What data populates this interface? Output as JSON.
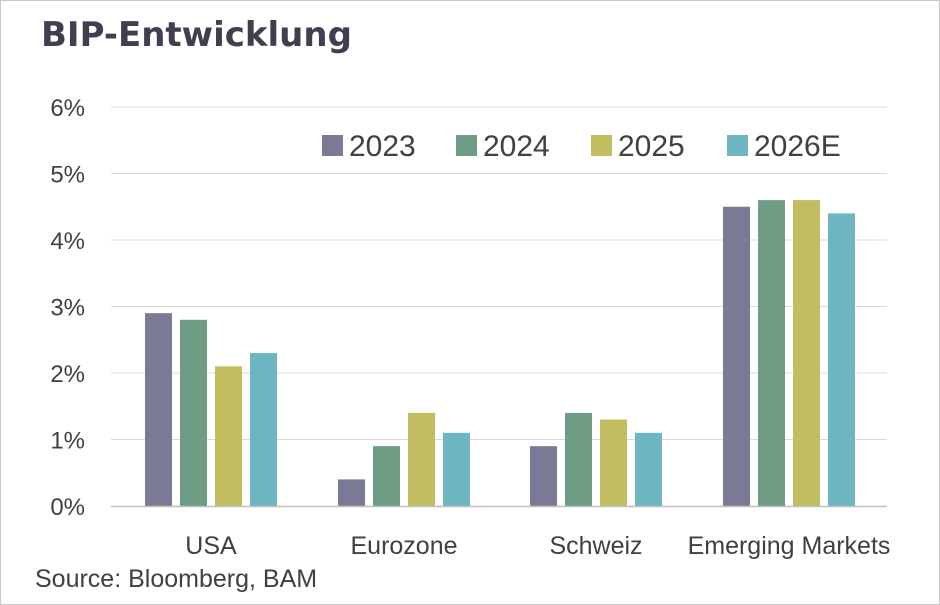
{
  "title": "BIP-Entwicklung",
  "source": "Source: Bloomberg, BAM",
  "chart_data": {
    "type": "bar",
    "title": "BIP-Entwicklung",
    "categories": [
      "USA",
      "Eurozone",
      "Schweiz",
      "Emerging Markets"
    ],
    "series": [
      {
        "name": "2023",
        "color": "#7b7a95",
        "values": [
          2.9,
          0.4,
          0.9,
          4.5
        ]
      },
      {
        "name": "2024",
        "color": "#6e9c85",
        "values": [
          2.8,
          0.9,
          1.4,
          4.6
        ]
      },
      {
        "name": "2025",
        "color": "#c1bd60",
        "values": [
          2.1,
          1.4,
          1.3,
          4.6
        ]
      },
      {
        "name": "2026E",
        "color": "#6db5c1",
        "values": [
          2.3,
          1.1,
          1.1,
          4.4
        ]
      }
    ],
    "yticks": [
      "0%",
      "1%",
      "2%",
      "3%",
      "4%",
      "5%",
      "6%"
    ],
    "ylim": [
      0,
      6
    ],
    "grid": true,
    "legend_position": "top-right"
  }
}
